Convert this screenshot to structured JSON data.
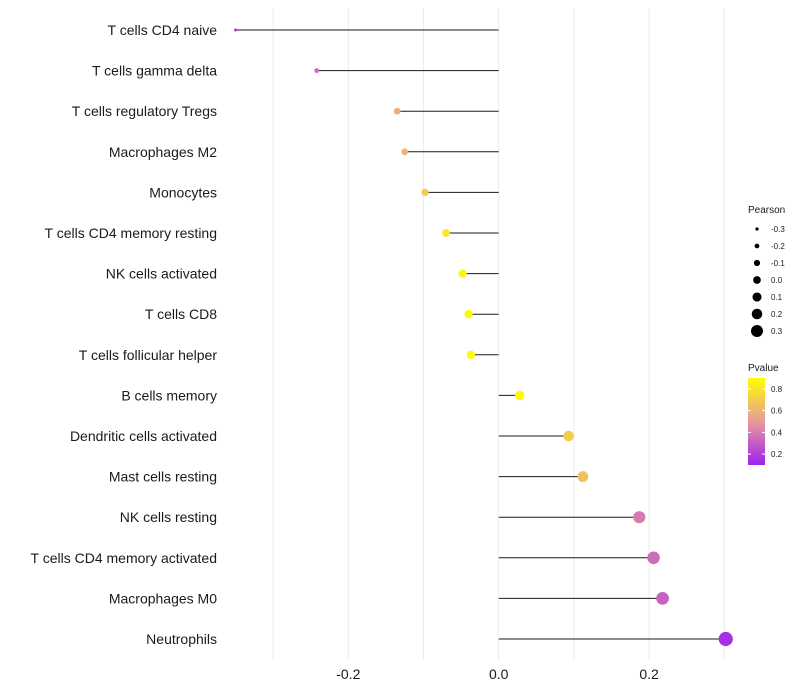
{
  "chart_data": {
    "type": "lollipop",
    "title": "",
    "xlabel": "",
    "ylabel": "",
    "xlim": [
      -0.36,
      0.305
    ],
    "x_ticks": [
      -0.2,
      0.0,
      0.2
    ],
    "x_tick_labels": [
      "-0.2",
      "0.0",
      "0.2"
    ],
    "grid": true,
    "series": [
      {
        "name": "T cells CD4 naive",
        "value": -0.35,
        "pvalue": 0.15
      },
      {
        "name": "T cells gamma delta",
        "value": -0.242,
        "pvalue": 0.35
      },
      {
        "name": "T cells regulatory  Tregs",
        "value": -0.135,
        "pvalue": 0.58
      },
      {
        "name": "Macrophages M2",
        "value": -0.125,
        "pvalue": 0.6
      },
      {
        "name": "Monocytes",
        "value": -0.098,
        "pvalue": 0.7
      },
      {
        "name": "T cells CD4 memory resting",
        "value": -0.07,
        "pvalue": 0.8
      },
      {
        "name": "NK cells activated",
        "value": -0.048,
        "pvalue": 0.86
      },
      {
        "name": "T cells CD8",
        "value": -0.04,
        "pvalue": 0.88
      },
      {
        "name": "T cells follicular helper",
        "value": -0.037,
        "pvalue": 0.88
      },
      {
        "name": "B cells memory",
        "value": 0.028,
        "pvalue": 0.88
      },
      {
        "name": "Dendritic cells activated",
        "value": 0.093,
        "pvalue": 0.7
      },
      {
        "name": "Mast cells resting",
        "value": 0.112,
        "pvalue": 0.65
      },
      {
        "name": "NK cells resting",
        "value": 0.187,
        "pvalue": 0.4
      },
      {
        "name": "T cells CD4 memory activated",
        "value": 0.206,
        "pvalue": 0.35
      },
      {
        "name": "Macrophages M0",
        "value": 0.218,
        "pvalue": 0.32
      },
      {
        "name": "Neutrophils",
        "value": 0.302,
        "pvalue": 0.15
      }
    ],
    "legend_size": {
      "title": "Pearson",
      "values": [
        -0.3,
        -0.2,
        -0.1,
        0.0,
        0.1,
        0.2,
        0.3
      ],
      "labels": [
        "-0.3",
        "-0.2",
        "-0.1",
        "0.0",
        "0.1",
        "0.2",
        "0.3"
      ]
    },
    "legend_color": {
      "title": "Pvalue",
      "range": [
        0.1,
        0.9
      ],
      "ticks": [
        0.8,
        0.6,
        0.4,
        0.2
      ],
      "tick_labels": [
        "0.8",
        "0.6",
        "0.4",
        "0.2"
      ],
      "color_low": "#a020f0",
      "color_mid": "#e89a9a",
      "color_high": "#ffff00"
    }
  }
}
